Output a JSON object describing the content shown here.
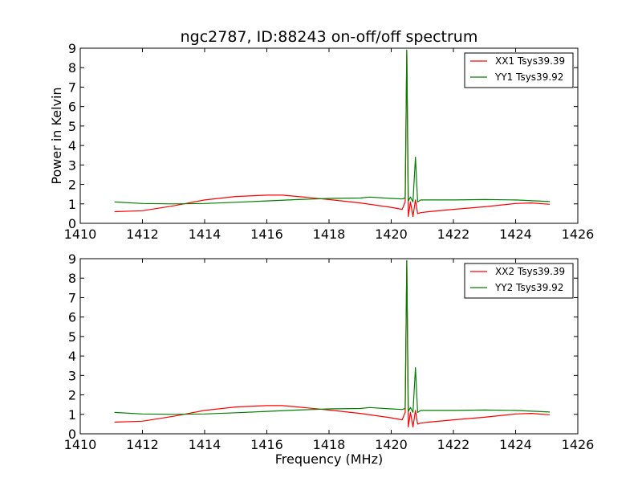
{
  "chart_data": [
    {
      "type": "line",
      "title": "ngc2787, ID:88243 on-off/off spectrum",
      "xlabel": "",
      "ylabel": "Power in Kelvin",
      "xlim": [
        1410,
        1426
      ],
      "ylim": [
        0,
        9
      ],
      "xticks": [
        "1410",
        "1412",
        "1414",
        "1416",
        "1418",
        "1420",
        "1422",
        "1424",
        "1426"
      ],
      "yticks": [
        "0",
        "1",
        "2",
        "3",
        "4",
        "5",
        "6",
        "7",
        "8",
        "9"
      ],
      "grid": false,
      "legend": "top-right",
      "series": [
        {
          "name": "XX1 Tsys39.39",
          "color": "#ff0000",
          "x": [
            1411.1,
            1412.0,
            1413.0,
            1414.0,
            1415.0,
            1416.0,
            1416.5,
            1417.0,
            1418.0,
            1419.0,
            1420.0,
            1420.35,
            1420.45,
            1420.5,
            1420.55,
            1420.62,
            1420.7,
            1420.78,
            1420.85,
            1420.95,
            1421.2,
            1422.0,
            1423.0,
            1424.0,
            1424.5,
            1425.1
          ],
          "y": [
            0.6,
            0.65,
            0.9,
            1.2,
            1.38,
            1.45,
            1.45,
            1.38,
            1.22,
            1.05,
            0.82,
            0.72,
            1.1,
            8.9,
            0.35,
            1.1,
            0.35,
            1.2,
            0.5,
            0.55,
            0.6,
            0.72,
            0.85,
            1.02,
            1.05,
            0.98
          ]
        },
        {
          "name": "YY1 Tsys39.92",
          "color": "#008000",
          "x": [
            1411.1,
            1412.0,
            1413.0,
            1414.0,
            1415.0,
            1416.0,
            1417.0,
            1418.0,
            1419.0,
            1419.3,
            1420.0,
            1420.35,
            1420.45,
            1420.5,
            1420.55,
            1420.62,
            1420.7,
            1420.78,
            1420.85,
            1420.95,
            1422.0,
            1423.0,
            1424.0,
            1425.1
          ],
          "y": [
            1.1,
            1.02,
            1.0,
            1.02,
            1.08,
            1.15,
            1.22,
            1.28,
            1.3,
            1.35,
            1.28,
            1.25,
            1.3,
            8.9,
            1.15,
            1.35,
            1.1,
            3.4,
            1.1,
            1.2,
            1.2,
            1.22,
            1.2,
            1.12
          ]
        }
      ]
    },
    {
      "type": "line",
      "title": "",
      "xlabel": "Frequency (MHz)",
      "ylabel": "",
      "xlim": [
        1410,
        1426
      ],
      "ylim": [
        0,
        9
      ],
      "xticks": [
        "1410",
        "1412",
        "1414",
        "1416",
        "1418",
        "1420",
        "1422",
        "1424",
        "1426"
      ],
      "yticks": [
        "0",
        "1",
        "2",
        "3",
        "4",
        "5",
        "6",
        "7",
        "8",
        "9"
      ],
      "grid": false,
      "legend": "top-right",
      "series": [
        {
          "name": "XX2 Tsys39.39",
          "color": "#ff0000",
          "x": [
            1411.1,
            1412.0,
            1413.0,
            1414.0,
            1415.0,
            1416.0,
            1416.5,
            1417.0,
            1418.0,
            1419.0,
            1420.0,
            1420.35,
            1420.45,
            1420.5,
            1420.55,
            1420.62,
            1420.7,
            1420.78,
            1420.85,
            1420.95,
            1421.2,
            1422.0,
            1423.0,
            1424.0,
            1424.5,
            1425.1
          ],
          "y": [
            0.6,
            0.65,
            0.9,
            1.2,
            1.38,
            1.45,
            1.45,
            1.38,
            1.22,
            1.05,
            0.82,
            0.72,
            1.1,
            8.9,
            0.35,
            1.1,
            0.35,
            1.2,
            0.5,
            0.55,
            0.6,
            0.72,
            0.85,
            1.02,
            1.05,
            0.98
          ]
        },
        {
          "name": "YY2 Tsys39.92",
          "color": "#008000",
          "x": [
            1411.1,
            1412.0,
            1413.0,
            1414.0,
            1415.0,
            1416.0,
            1417.0,
            1418.0,
            1419.0,
            1419.3,
            1420.0,
            1420.35,
            1420.45,
            1420.5,
            1420.55,
            1420.62,
            1420.7,
            1420.78,
            1420.85,
            1420.95,
            1422.0,
            1423.0,
            1424.0,
            1425.1
          ],
          "y": [
            1.1,
            1.02,
            1.0,
            1.02,
            1.08,
            1.15,
            1.22,
            1.28,
            1.3,
            1.35,
            1.28,
            1.25,
            1.3,
            8.9,
            1.15,
            1.35,
            1.1,
            3.4,
            1.1,
            1.2,
            1.2,
            1.22,
            1.2,
            1.12
          ]
        }
      ]
    }
  ]
}
